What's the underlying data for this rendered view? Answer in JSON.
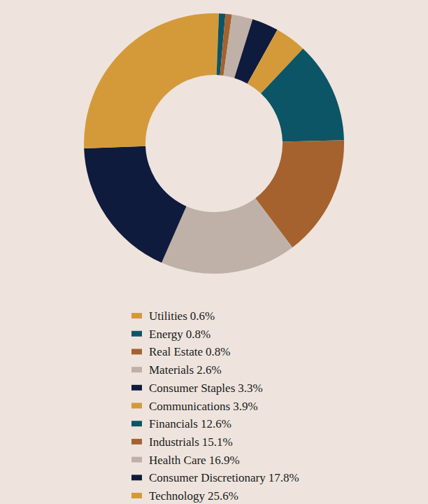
{
  "chart_data": {
    "type": "pie",
    "categories": [
      "Utilities",
      "Energy",
      "Real Estate",
      "Materials",
      "Consumer Staples",
      "Communications",
      "Financials",
      "Industrials",
      "Health Care",
      "Consumer Discretionary",
      "Technology"
    ],
    "values": [
      0.6,
      0.8,
      0.8,
      2.6,
      3.3,
      3.9,
      12.6,
      15.1,
      16.9,
      17.8,
      25.6
    ],
    "value_labels": [
      "0.6%",
      "0.8%",
      "0.8%",
      "2.6%",
      "3.3%",
      "3.9%",
      "12.6%",
      "15.1%",
      "16.9%",
      "17.8%",
      "25.6%"
    ],
    "colors": [
      "#D49A3A",
      "#0B5566",
      "#A5622F",
      "#BFB1A7",
      "#0F1B3D",
      "#D49A3A",
      "#0B5566",
      "#A5622F",
      "#BFB1A7",
      "#0F1B3D",
      "#D49A3A"
    ],
    "legend": "bottom"
  }
}
